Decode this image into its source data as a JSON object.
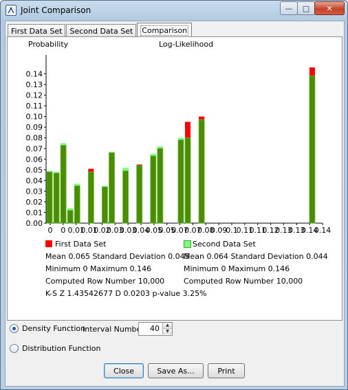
{
  "window": {
    "title": "Joint Comparison"
  },
  "tabs": [
    {
      "label": "First Data Set",
      "active": false
    },
    {
      "label": "Second Data Set",
      "active": false
    },
    {
      "label": "Comparison",
      "active": true
    }
  ],
  "chart_data": {
    "type": "bar",
    "title": "Log-Likelihood",
    "ylabel": "Probability",
    "xlabel": "",
    "ylim": [
      0,
      0.15
    ],
    "yticks": [
      0.0,
      0.01,
      0.02,
      0.03,
      0.04,
      0.05,
      0.06,
      0.07,
      0.08,
      0.09,
      0.1,
      0.11,
      0.12,
      0.13,
      0.14
    ],
    "ytick_labels": [
      "0.00",
      "0.01",
      "0.02",
      "0.03",
      "0.04",
      "0.05",
      "0.06",
      "0.07",
      "0.08",
      "0.09",
      "0.10",
      "0.11",
      "0.12",
      "0.13",
      "0.14"
    ],
    "xtick_labels": [
      "0",
      "0",
      "0.01",
      "0.01",
      "0.02",
      "0.03",
      "0.03",
      "0.04",
      "0.05",
      "0.05",
      "0.07",
      "0.07",
      "0.08",
      "0.09",
      "0.1",
      "0.11",
      "0.11",
      "0.12",
      "0.13",
      "0.13",
      "0.14",
      "0.14"
    ],
    "bins": 40,
    "series": [
      {
        "name": "First Data Set",
        "color": "#ff0000",
        "values": [
          0.048,
          0.047,
          0.073,
          0.012,
          0.035,
          0,
          0.051,
          0,
          0.034,
          0.066,
          0,
          0.049,
          0,
          0.055,
          0,
          0.063,
          0.07,
          0,
          0,
          0.078,
          0.095,
          0,
          0.1,
          0,
          0,
          0,
          0,
          0,
          0,
          0,
          0,
          0,
          0,
          0,
          0,
          0,
          0,
          0,
          0.146,
          0
        ]
      },
      {
        "name": "Second Data Set",
        "color": "#7cfc7c",
        "values": [
          0.049,
          0.048,
          0.075,
          0.014,
          0.037,
          0,
          0.048,
          0,
          0.035,
          0.067,
          0,
          0.052,
          0,
          0.054,
          0,
          0.065,
          0.072,
          0,
          0,
          0.08,
          0.08,
          0,
          0.097,
          0,
          0,
          0,
          0,
          0,
          0,
          0,
          0,
          0,
          0,
          0,
          0,
          0,
          0,
          0,
          0.138,
          0
        ]
      }
    ],
    "overlap_color": "#4d8c00",
    "legend": [
      {
        "label": "First Data Set",
        "color": "#ff0000"
      },
      {
        "label": "Second Data Set",
        "color": "#7cfc7c"
      }
    ]
  },
  "stats": {
    "first": {
      "mean_line": "Mean 0.065 Standard Deviation 0.045",
      "minmax_line": "Minimum 0 Maximum 0.146",
      "rows_line": "Computed Row Number 10,000"
    },
    "second": {
      "mean_line": "Mean 0.064 Standard Deviation 0.044",
      "minmax_line": "Minimum 0 Maximum 0.146",
      "rows_line": "Computed Row Number 10,000"
    },
    "ks_line": "K-S  Z 1.43542677  D 0.0203  p-value 3.25%"
  },
  "options": {
    "density_label": "Density Function",
    "distribution_label": "Distribution Function",
    "selected": "density",
    "interval_label": "Interval Number",
    "interval_value": "40"
  },
  "buttons": {
    "close": "Close",
    "save_as": "Save As...",
    "print": "Print"
  }
}
